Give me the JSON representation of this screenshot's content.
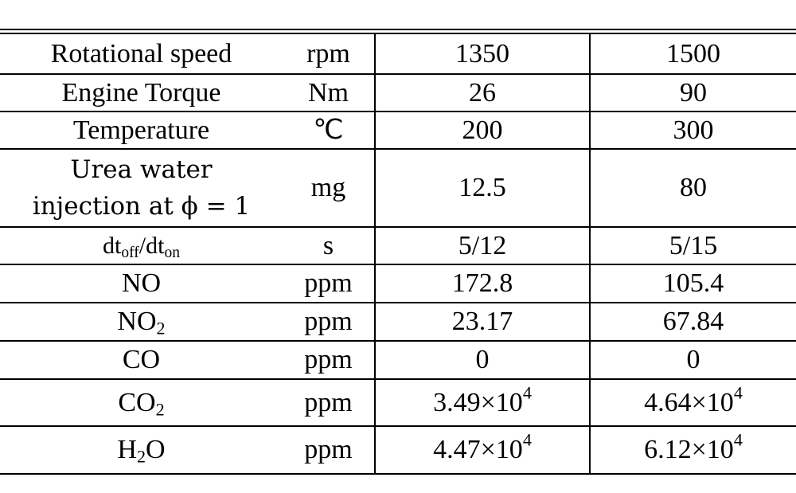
{
  "table": {
    "rows": [
      [
        "Rotational speed",
        "rpm",
        "1350",
        "1500"
      ],
      [
        "Engine Torque",
        "Nm",
        "26",
        "90"
      ],
      [
        "Temperature",
        "℃",
        "200",
        "300"
      ],
      [
        [
          [
            "Urea water"
          ],
          [
            "injection at ϕ = 1"
          ]
        ],
        "mg",
        "12.5",
        "80"
      ],
      [
        [
          "dt",
          {
            "sub": "off"
          },
          "/dt",
          {
            "sub": "on"
          }
        ],
        "s",
        "5/12",
        "5/15"
      ],
      [
        "NO",
        "ppm",
        "172.8",
        "105.4"
      ],
      [
        [
          "NO",
          {
            "sub": "2"
          }
        ],
        "ppm",
        "23.17",
        "67.84"
      ],
      [
        "CO",
        "ppm",
        "0",
        "0"
      ],
      [
        [
          "CO",
          {
            "sub": "2"
          }
        ],
        "ppm",
        [
          "3.49×10",
          {
            "sup": "4"
          }
        ],
        [
          "4.64×10",
          {
            "sup": "4"
          }
        ]
      ],
      [
        [
          "H",
          {
            "sub": "2"
          },
          "O"
        ],
        "ppm",
        [
          "4.47×10",
          {
            "sup": "4"
          }
        ],
        [
          "6.12×10",
          {
            "sup": "4"
          }
        ]
      ]
    ]
  }
}
